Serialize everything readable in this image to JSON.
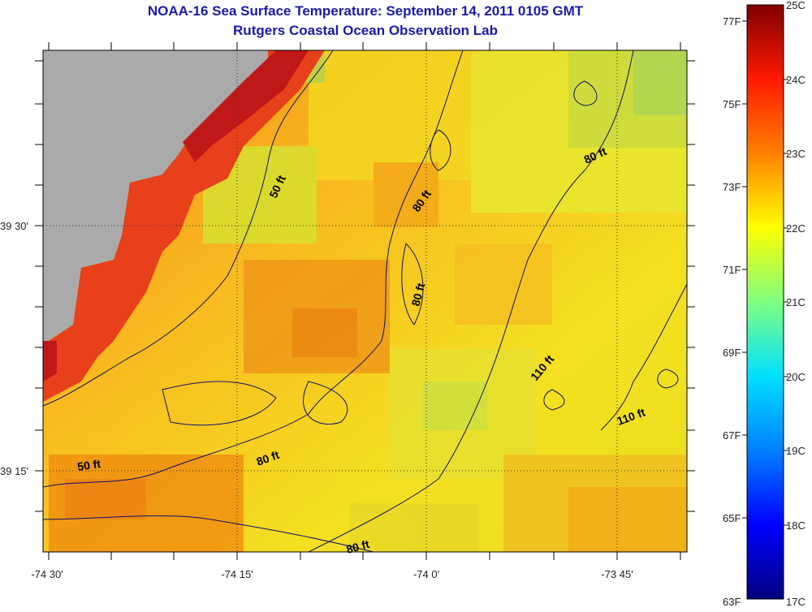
{
  "title": "NOAA-16 Sea Surface Temperature:  September 14, 2011 0105 GMT",
  "subtitle": "Rutgers Coastal Ocean Observation Lab",
  "longitude_labels": [
    "-74 30'",
    "-74 15'",
    "-74 0'",
    "-73 45'"
  ],
  "latitude_labels": [
    "39 30'",
    "39 15'"
  ],
  "contour_labels": [
    "50 ft",
    "80 ft",
    "80 ft",
    "80 ft",
    "80 ft",
    "110 ft",
    "110 ft",
    "50 ft",
    "80 ft"
  ],
  "colorbar": {
    "fahrenheit_labels": [
      "77F",
      "75F",
      "73F",
      "71F",
      "69F",
      "67F",
      "65F",
      "63F"
    ],
    "celsius_labels": [
      "25C",
      "24C",
      "23C",
      "22C",
      "21C",
      "20C",
      "19C",
      "18C",
      "17C"
    ],
    "min_c": 17,
    "max_c": 25
  },
  "colors": {
    "title": "#1a1aa8",
    "land": "#aaaaaa"
  }
}
